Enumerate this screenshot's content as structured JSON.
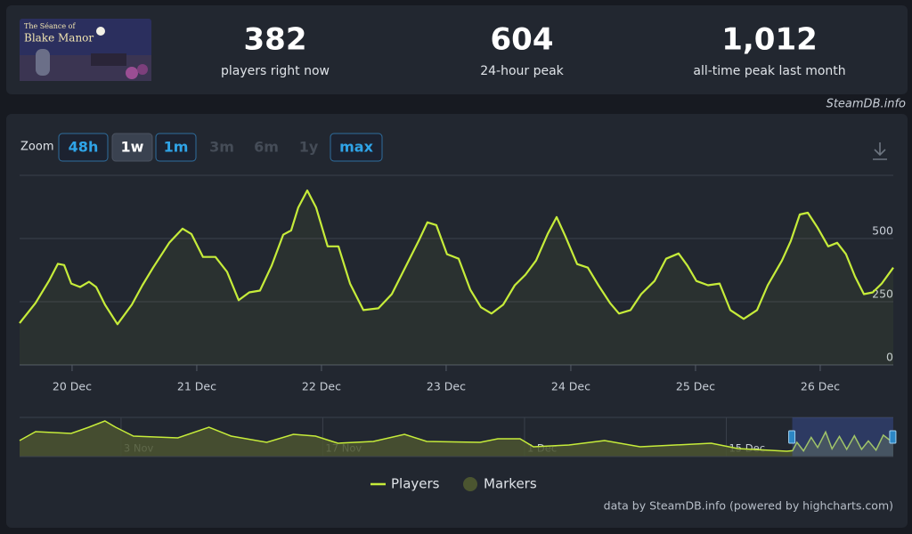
{
  "header": {
    "game_logo": [
      "The Séance of",
      "Blake Manor"
    ],
    "stats": [
      {
        "value": "382",
        "label": "players right now"
      },
      {
        "value": "604",
        "label": "24-hour peak"
      },
      {
        "value": "1,012",
        "label": "all-time peak last month"
      }
    ],
    "credit": "SteamDB.info"
  },
  "zoom": {
    "label": "Zoom",
    "buttons": [
      {
        "text": "48h",
        "state": "enabled"
      },
      {
        "text": "1w",
        "state": "selected"
      },
      {
        "text": "1m",
        "state": "enabled"
      },
      {
        "text": "3m",
        "state": "disabled"
      },
      {
        "text": "6m",
        "state": "disabled"
      },
      {
        "text": "1y",
        "state": "disabled"
      },
      {
        "text": "max",
        "state": "enabled"
      }
    ]
  },
  "chart_data": {
    "type": "line",
    "grid": true,
    "x": [
      19.579,
      19.707,
      19.814,
      19.886,
      19.936,
      19.993,
      20.064,
      20.136,
      20.193,
      20.264,
      20.364,
      20.479,
      20.564,
      20.65,
      20.779,
      20.886,
      20.957,
      21.05,
      21.15,
      21.243,
      21.336,
      21.421,
      21.507,
      21.6,
      21.693,
      21.757,
      21.814,
      21.886,
      21.957,
      22.05,
      22.136,
      22.229,
      22.336,
      22.457,
      22.564,
      22.671,
      22.779,
      22.85,
      22.921,
      23.007,
      23.1,
      23.193,
      23.279,
      23.364,
      23.457,
      23.55,
      23.636,
      23.721,
      23.814,
      23.886,
      23.957,
      24.05,
      24.136,
      24.221,
      24.314,
      24.386,
      24.479,
      24.564,
      24.671,
      24.764,
      24.864,
      24.936,
      25.007,
      25.1,
      25.193,
      25.279,
      25.386,
      25.493,
      25.579,
      25.693,
      25.764,
      25.836,
      25.9,
      25.979,
      26.064,
      26.136,
      26.207,
      26.279,
      26.35,
      26.421,
      26.493,
      26.586
    ],
    "series": [
      {
        "name": "Players",
        "color": "#c6ec3a",
        "values": [
          165,
          245,
          332,
          400,
          395,
          322,
          308,
          329,
          308,
          238,
          161,
          238,
          315,
          385,
          483,
          539,
          518,
          427,
          427,
          368,
          256,
          287,
          294,
          392,
          515,
          532,
          623,
          690,
          623,
          469,
          469,
          322,
          217,
          224,
          280,
          385,
          490,
          564,
          553,
          438,
          420,
          298,
          228,
          203,
          238,
          315,
          357,
          413,
          518,
          585,
          508,
          399,
          385,
          315,
          245,
          203,
          217,
          280,
          332,
          420,
          441,
          392,
          332,
          315,
          322,
          217,
          182,
          217,
          315,
          413,
          490,
          595,
          602,
          543,
          469,
          483,
          438,
          350,
          280,
          287,
          322,
          385
        ]
      }
    ],
    "xlim": [
      19.579,
      26.586
    ],
    "xticks": [
      {
        "value": 20,
        "label": "20 Dec"
      },
      {
        "value": 21,
        "label": "21 Dec"
      },
      {
        "value": 22,
        "label": "22 Dec"
      },
      {
        "value": 23,
        "label": "23 Dec"
      },
      {
        "value": 24,
        "label": "24 Dec"
      },
      {
        "value": 25,
        "label": "25 Dec"
      },
      {
        "value": 26,
        "label": "26 Dec"
      }
    ],
    "ylim": [
      0,
      750
    ],
    "yticks": [
      0,
      250,
      500
    ],
    "markers": {
      "name": "Markers",
      "color": "#4b5530"
    },
    "navigator": {
      "color": "#4b5530",
      "x": [
        -34.04,
        -32.93,
        -30.46,
        -29.23,
        -28.12,
        -27.38,
        -26.14,
        -23.06,
        -20.9,
        -19.36,
        -16.89,
        -15.04,
        -13.5,
        -11.95,
        -9.49,
        -7.33,
        -5.79,
        -2.08,
        -0.85,
        0.69,
        1.62,
        4.08,
        6.55,
        9.02,
        13.95,
        15.81,
        19.2,
        19.6,
        19.9,
        20.36,
        20.89,
        21.34,
        21.89,
        22.34,
        22.85,
        23.36,
        23.89,
        24.39,
        24.86,
        25.39,
        25.9,
        26.59
      ],
      "values": [
        450,
        700,
        650,
        825,
        1000,
        825,
        575,
        525,
        825,
        575,
        400,
        625,
        575,
        375,
        425,
        625,
        425,
        400,
        500,
        500,
        275,
        325,
        450,
        275,
        375,
        225,
        150,
        165,
        400,
        161,
        539,
        256,
        690,
        217,
        564,
        203,
        585,
        203,
        441,
        182,
        602,
        385
      ],
      "xlim": [
        -34.04,
        26.59
      ],
      "ylim": [
        0,
        1100
      ],
      "xticks": [
        {
          "value": -27,
          "label": "3 Nov"
        },
        {
          "value": -13,
          "label": "17 Nov"
        },
        {
          "value": 1,
          "label": "1 Dec"
        },
        {
          "value": 15,
          "label": "15 Dec"
        }
      ]
    }
  },
  "footer": "data by SteamDB.info (powered by highcharts.com)"
}
